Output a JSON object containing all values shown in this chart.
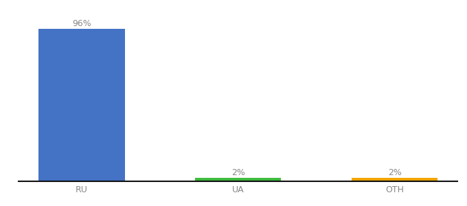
{
  "categories": [
    "RU",
    "UA",
    "OTH"
  ],
  "values": [
    96,
    2,
    2
  ],
  "bar_colors": [
    "#4472c4",
    "#3dbb3d",
    "#f0a500"
  ],
  "labels": [
    "96%",
    "2%",
    "2%"
  ],
  "ylim": [
    0,
    104
  ],
  "background_color": "#ffffff",
  "label_fontsize": 9,
  "tick_fontsize": 9,
  "bar_width": 0.55,
  "label_color": "#888888",
  "tick_color": "#888888",
  "spine_color": "#111111"
}
